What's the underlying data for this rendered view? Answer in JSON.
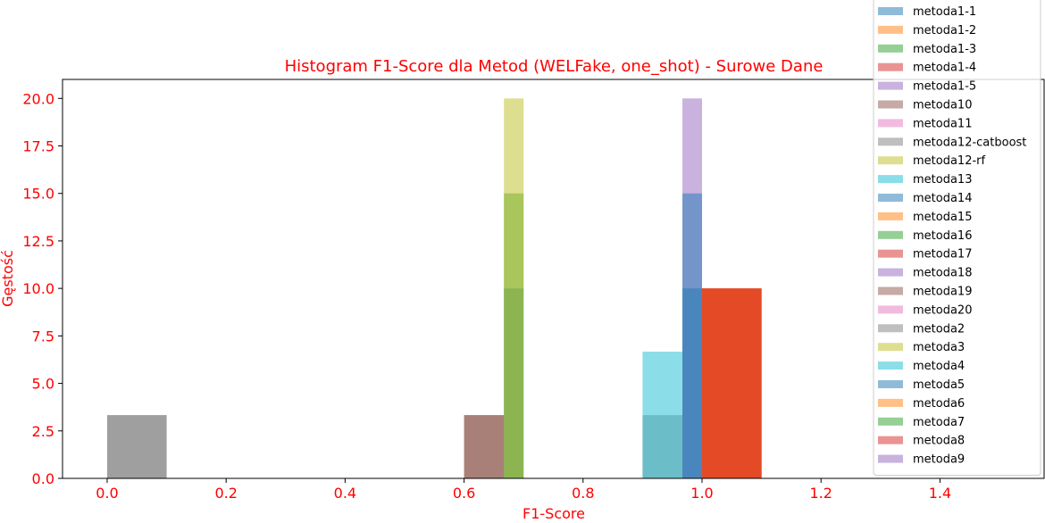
{
  "chart_data": {
    "type": "bar",
    "title": "Histogram F1-Score dla Metod (WELFake, one_shot) - Surowe Dane",
    "xlabel": "F1-Score",
    "ylabel": "Gęstość",
    "xlim": [
      -0.075,
      1.575
    ],
    "ylim": [
      0,
      21
    ],
    "xticks": [
      "0.0",
      "0.2",
      "0.4",
      "0.6",
      "0.8",
      "1.0",
      "1.2",
      "1.4"
    ],
    "yticks": [
      "0.0",
      "2.5",
      "5.0",
      "7.5",
      "10.0",
      "12.5",
      "15.0",
      "17.5",
      "20.0"
    ],
    "legend_position": "top-right",
    "bar_opacity": 0.5,
    "series": [
      {
        "name": "metoda1-1",
        "color": "#1f77b4",
        "bars": [
          {
            "x0": 0.667,
            "x1": 0.7,
            "y": 10.0
          }
        ]
      },
      {
        "name": "metoda1-2",
        "color": "#ff7f0e",
        "bars": []
      },
      {
        "name": "metoda1-3",
        "color": "#2ca02c",
        "bars": [
          {
            "x0": 0.667,
            "x1": 0.7,
            "y": 15.0
          }
        ]
      },
      {
        "name": "metoda1-4",
        "color": "#d62728",
        "bars": [
          {
            "x0": 1.0,
            "x1": 1.1,
            "y": 10.0
          }
        ]
      },
      {
        "name": "metoda1-5",
        "color": "#9467bd",
        "bars": [
          {
            "x0": 0.967,
            "x1": 1.0,
            "y": 20.0
          }
        ]
      },
      {
        "name": "metoda10",
        "color": "#8c564b",
        "bars": [
          {
            "x0": 0.6,
            "x1": 0.667,
            "y": 3.33
          }
        ]
      },
      {
        "name": "metoda11",
        "color": "#e377c2",
        "bars": []
      },
      {
        "name": "metoda12-catboost",
        "color": "#7f7f7f",
        "bars": [
          {
            "x0": 0.0,
            "x1": 0.1,
            "y": 3.33
          },
          {
            "x0": 0.9,
            "x1": 0.967,
            "y": 3.33
          }
        ]
      },
      {
        "name": "metoda12-rf",
        "color": "#bcbd22",
        "bars": [
          {
            "x0": 0.667,
            "x1": 0.7,
            "y": 20.0
          }
        ]
      },
      {
        "name": "metoda13",
        "color": "#17becf",
        "bars": [
          {
            "x0": 0.9,
            "x1": 0.967,
            "y": 6.67
          }
        ]
      },
      {
        "name": "metoda14",
        "color": "#1f77b4",
        "bars": [
          {
            "x0": 0.967,
            "x1": 1.0,
            "y": 15.0
          }
        ]
      },
      {
        "name": "metoda15",
        "color": "#ff7f0e",
        "bars": [
          {
            "x0": 1.0,
            "x1": 1.1,
            "y": 10.0
          }
        ]
      },
      {
        "name": "metoda16",
        "color": "#2ca02c",
        "bars": []
      },
      {
        "name": "metoda17",
        "color": "#d62728",
        "bars": [
          {
            "x0": 1.0,
            "x1": 1.1,
            "y": 10.0
          }
        ]
      },
      {
        "name": "metoda18",
        "color": "#9467bd",
        "bars": []
      },
      {
        "name": "metoda19",
        "color": "#8c564b",
        "bars": [
          {
            "x0": 0.6,
            "x1": 0.667,
            "y": 3.33
          }
        ]
      },
      {
        "name": "metoda20",
        "color": "#e377c2",
        "bars": []
      },
      {
        "name": "metoda2",
        "color": "#7f7f7f",
        "bars": [
          {
            "x0": 0.0,
            "x1": 0.1,
            "y": 3.33
          }
        ]
      },
      {
        "name": "metoda3",
        "color": "#bcbd22",
        "bars": []
      },
      {
        "name": "metoda4",
        "color": "#17becf",
        "bars": []
      },
      {
        "name": "metoda5",
        "color": "#1f77b4",
        "bars": [
          {
            "x0": 0.967,
            "x1": 1.0,
            "y": 10.0
          }
        ]
      },
      {
        "name": "metoda6",
        "color": "#ff7f0e",
        "bars": [
          {
            "x0": 1.0,
            "x1": 1.1,
            "y": 10.0
          }
        ]
      },
      {
        "name": "metoda7",
        "color": "#2ca02c",
        "bars": []
      },
      {
        "name": "metoda8",
        "color": "#d62728",
        "bars": [
          {
            "x0": 1.0,
            "x1": 1.1,
            "y": 10.0
          }
        ]
      },
      {
        "name": "metoda9",
        "color": "#9467bd",
        "bars": []
      }
    ]
  }
}
